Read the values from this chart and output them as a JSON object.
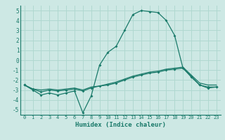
{
  "xlabel": "Humidex (Indice chaleur)",
  "background_color": "#cde8e4",
  "grid_color": "#b0d8d0",
  "line_color": "#1a7a6a",
  "xlim": [
    -0.5,
    23.5
  ],
  "ylim": [
    -5.5,
    5.5
  ],
  "xticks": [
    0,
    1,
    2,
    3,
    4,
    5,
    6,
    7,
    8,
    9,
    10,
    11,
    12,
    13,
    14,
    15,
    16,
    17,
    18,
    19,
    20,
    21,
    22,
    23
  ],
  "yticks": [
    -5,
    -4,
    -3,
    -2,
    -1,
    0,
    1,
    2,
    3,
    4,
    5
  ],
  "line1_x": [
    0,
    1,
    2,
    3,
    4,
    5,
    6,
    7,
    8,
    9,
    10,
    11,
    12,
    13,
    14,
    15,
    16,
    17,
    18,
    19,
    20,
    21,
    22,
    23
  ],
  "line1_y": [
    -2.5,
    -3.0,
    -3.5,
    -3.3,
    -3.5,
    -3.3,
    -3.1,
    -5.3,
    -3.6,
    -0.5,
    0.8,
    1.4,
    3.0,
    4.6,
    5.0,
    4.9,
    4.8,
    4.0,
    2.5,
    -0.8,
    -1.6,
    -2.5,
    -2.8,
    -2.7
  ],
  "line2_x": [
    0,
    1,
    2,
    3,
    4,
    5,
    6,
    7,
    8,
    9,
    10,
    11,
    12,
    13,
    14,
    15,
    16,
    17,
    18,
    19,
    20,
    21,
    22,
    23
  ],
  "line2_y": [
    -2.5,
    -2.9,
    -3.2,
    -3.0,
    -3.1,
    -3.0,
    -2.9,
    -3.1,
    -2.8,
    -2.6,
    -2.5,
    -2.3,
    -2.0,
    -1.7,
    -1.5,
    -1.3,
    -1.2,
    -1.0,
    -0.9,
    -0.8,
    -1.7,
    -2.5,
    -2.7,
    -2.7
  ],
  "line3_x": [
    0,
    1,
    2,
    3,
    4,
    5,
    6,
    7,
    8,
    9,
    10,
    11,
    12,
    13,
    14,
    15,
    16,
    17,
    18,
    19,
    20,
    21,
    22,
    23
  ],
  "line3_y": [
    -2.5,
    -2.9,
    -3.0,
    -2.9,
    -3.0,
    -2.9,
    -2.8,
    -3.0,
    -2.7,
    -2.6,
    -2.4,
    -2.2,
    -1.9,
    -1.6,
    -1.4,
    -1.2,
    -1.1,
    -0.9,
    -0.8,
    -0.7,
    -1.5,
    -2.3,
    -2.5,
    -2.5
  ]
}
